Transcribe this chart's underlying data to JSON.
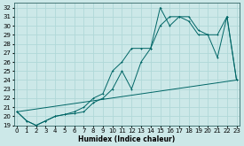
{
  "xlabel": "Humidex (Indice chaleur)",
  "x_ticks": [
    0,
    1,
    2,
    3,
    4,
    5,
    6,
    7,
    8,
    9,
    10,
    11,
    12,
    13,
    14,
    15,
    16,
    17,
    18,
    19,
    20,
    21,
    22,
    23
  ],
  "ylim": [
    19,
    32.5
  ],
  "xlim": [
    -0.3,
    23.3
  ],
  "bg_color": "#cce8e8",
  "line_color": "#006666",
  "grid_color": "#b0d8d8",
  "line1_x": [
    0,
    1,
    2,
    3,
    4,
    5,
    6,
    7,
    8,
    9,
    10,
    11,
    12,
    13,
    14,
    15,
    16,
    17,
    18,
    19,
    20,
    21,
    22,
    23
  ],
  "line1_y": [
    20.5,
    19.5,
    19.0,
    19.5,
    20.0,
    20.2,
    20.3,
    20.5,
    21.5,
    22.0,
    23.0,
    25.0,
    23.0,
    26.0,
    27.5,
    32.0,
    30.0,
    31.0,
    30.5,
    29.0,
    29.0,
    26.5,
    31.0,
    24.0
  ],
  "line2_x": [
    0,
    1,
    2,
    3,
    4,
    5,
    6,
    7,
    8,
    9,
    10,
    11,
    12,
    13,
    14,
    15,
    16,
    17,
    18,
    19,
    20,
    21,
    22,
    23
  ],
  "line2_y": [
    20.5,
    19.5,
    19.0,
    19.5,
    20.0,
    20.2,
    20.5,
    21.0,
    22.0,
    22.5,
    25.0,
    26.0,
    27.5,
    27.5,
    27.5,
    30.0,
    31.0,
    31.0,
    31.0,
    29.5,
    29.0,
    29.0,
    31.0,
    24.0
  ],
  "line3_x": [
    0,
    23
  ],
  "line3_y": [
    20.5,
    24.0
  ]
}
